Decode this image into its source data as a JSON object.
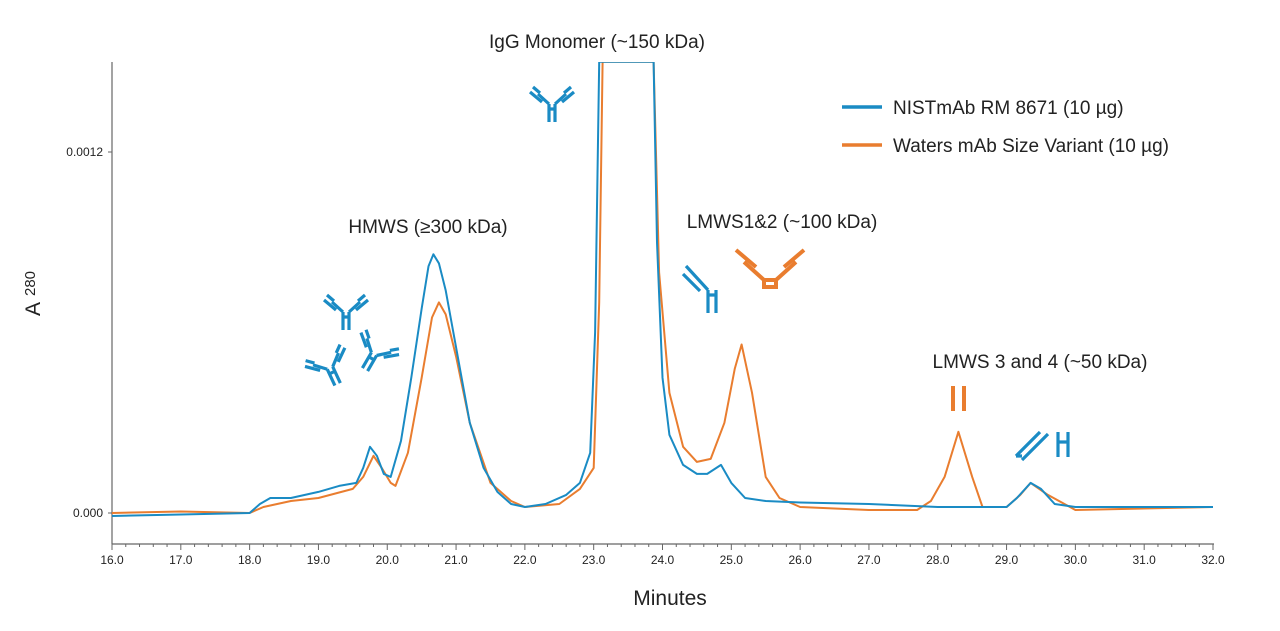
{
  "chart_data": {
    "type": "line",
    "title": "",
    "xlabel": "Minutes",
    "ylabel": "A",
    "ylabel_subscript": "280",
    "xlim": [
      16.0,
      32.0
    ],
    "ylim": [
      -0.0001,
      0.0015
    ],
    "x_ticks": [
      "16.0",
      "17.0",
      "18.0",
      "19.0",
      "20.0",
      "21.0",
      "22.0",
      "23.0",
      "24.0",
      "25.0",
      "26.0",
      "27.0",
      "28.0",
      "29.0",
      "30.0",
      "31.0",
      "32.0"
    ],
    "y_ticks": [
      "0.000",
      "0.0012"
    ],
    "grid": false,
    "legend_position": "top-right",
    "colors": {
      "blue": "#1a8bc4",
      "orange": "#e97d2f"
    },
    "series": [
      {
        "name": "NISTmAb RM 8671 (10 µg)",
        "color": "#1a8bc4",
        "points": [
          [
            16.0,
            -1e-05
          ],
          [
            17.0,
            -5e-06
          ],
          [
            18.0,
            0.0
          ],
          [
            18.15,
            3e-05
          ],
          [
            18.3,
            5e-05
          ],
          [
            18.6,
            5e-05
          ],
          [
            19.0,
            7e-05
          ],
          [
            19.3,
            9e-05
          ],
          [
            19.55,
            0.0001
          ],
          [
            19.65,
            0.00015
          ],
          [
            19.75,
            0.00022
          ],
          [
            19.85,
            0.00019
          ],
          [
            19.95,
            0.00013
          ],
          [
            20.05,
            0.00012
          ],
          [
            20.2,
            0.00024
          ],
          [
            20.35,
            0.00045
          ],
          [
            20.5,
            0.00068
          ],
          [
            20.6,
            0.00082
          ],
          [
            20.67,
            0.00086
          ],
          [
            20.75,
            0.00083
          ],
          [
            20.85,
            0.00074
          ],
          [
            21.0,
            0.00055
          ],
          [
            21.2,
            0.0003
          ],
          [
            21.4,
            0.00015
          ],
          [
            21.6,
            7e-05
          ],
          [
            21.8,
            3e-05
          ],
          [
            22.0,
            2e-05
          ],
          [
            22.3,
            3e-05
          ],
          [
            22.6,
            6e-05
          ],
          [
            22.8,
            0.0001
          ],
          [
            22.95,
            0.0002
          ],
          [
            23.02,
            0.0006
          ],
          [
            23.08,
            0.0015
          ],
          [
            23.87,
            0.0015
          ],
          [
            23.92,
            0.0009
          ],
          [
            24.0,
            0.00045
          ],
          [
            24.1,
            0.00026
          ],
          [
            24.3,
            0.00016
          ],
          [
            24.5,
            0.00013
          ],
          [
            24.65,
            0.00013
          ],
          [
            24.85,
            0.00016
          ],
          [
            25.0,
            0.0001
          ],
          [
            25.2,
            5e-05
          ],
          [
            25.5,
            4e-05
          ],
          [
            26.0,
            3.5e-05
          ],
          [
            27.0,
            3e-05
          ],
          [
            28.0,
            2e-05
          ],
          [
            29.0,
            2e-05
          ],
          [
            29.15,
            5e-05
          ],
          [
            29.35,
            0.0001
          ],
          [
            29.5,
            8e-05
          ],
          [
            29.7,
            3e-05
          ],
          [
            30.0,
            2e-05
          ],
          [
            32.0,
            2e-05
          ]
        ]
      },
      {
        "name": "Waters mAb Size Variant  (10 µg)",
        "color": "#e97d2f",
        "points": [
          [
            16.0,
            0.0
          ],
          [
            17.0,
            5e-06
          ],
          [
            18.0,
            0.0
          ],
          [
            18.2,
            2e-05
          ],
          [
            18.6,
            4e-05
          ],
          [
            19.0,
            5e-05
          ],
          [
            19.5,
            8e-05
          ],
          [
            19.65,
            0.00012
          ],
          [
            19.8,
            0.00019
          ],
          [
            19.92,
            0.00015
          ],
          [
            20.05,
            0.0001
          ],
          [
            20.12,
            9e-05
          ],
          [
            20.3,
            0.0002
          ],
          [
            20.5,
            0.00045
          ],
          [
            20.65,
            0.00065
          ],
          [
            20.75,
            0.0007
          ],
          [
            20.85,
            0.00066
          ],
          [
            21.0,
            0.00052
          ],
          [
            21.2,
            0.0003
          ],
          [
            21.5,
            0.0001
          ],
          [
            21.8,
            4e-05
          ],
          [
            22.0,
            2e-05
          ],
          [
            22.5,
            3e-05
          ],
          [
            22.8,
            8e-05
          ],
          [
            23.0,
            0.00015
          ],
          [
            23.08,
            0.0007
          ],
          [
            23.13,
            0.0015
          ],
          [
            23.87,
            0.0015
          ],
          [
            23.95,
            0.0008
          ],
          [
            24.1,
            0.0004
          ],
          [
            24.3,
            0.00022
          ],
          [
            24.5,
            0.00017
          ],
          [
            24.7,
            0.00018
          ],
          [
            24.9,
            0.0003
          ],
          [
            25.05,
            0.00048
          ],
          [
            25.15,
            0.00056
          ],
          [
            25.3,
            0.0004
          ],
          [
            25.5,
            0.00012
          ],
          [
            25.7,
            5e-05
          ],
          [
            26.0,
            2e-05
          ],
          [
            27.0,
            1e-05
          ],
          [
            27.7,
            1e-05
          ],
          [
            27.9,
            4e-05
          ],
          [
            28.1,
            0.00012
          ],
          [
            28.3,
            0.00027
          ],
          [
            28.5,
            0.00012
          ],
          [
            28.65,
            2e-05
          ],
          [
            29.0,
            2e-05
          ],
          [
            29.2,
            6e-05
          ],
          [
            29.35,
            0.0001
          ],
          [
            29.6,
            6e-05
          ],
          [
            30.0,
            1e-05
          ],
          [
            32.0,
            2e-05
          ]
        ]
      }
    ],
    "annotations": [
      "IgG Monomer (~150 kDa)",
      "HMWS (≥300 kDa)",
      "LMWS1&2 (~100 kDa)",
      "LMWS 3 and 4 (~50 kDa)"
    ]
  }
}
